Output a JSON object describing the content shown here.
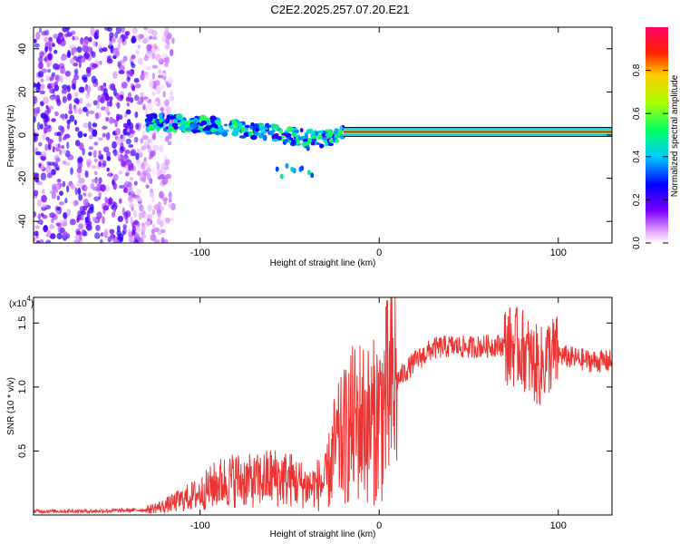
{
  "figure_title": "C2E2.2025.257.07.20.E21",
  "chart_data": [
    {
      "type": "heatmap",
      "title": "C2E2.2025.257.07.20.E21",
      "xlabel": "Height of straight line (km)",
      "ylabel": "Frequency (Hz)",
      "xlim": [
        -193,
        130
      ],
      "ylim": [
        -50,
        50
      ],
      "xticks": [
        -100,
        0,
        100
      ],
      "yticks": [
        -40,
        -20,
        0,
        20,
        40
      ],
      "grid": false,
      "colorbar": {
        "label": "Normalized spectral amplitude",
        "range": [
          0,
          1
        ],
        "ticks": [
          0.0,
          0.2,
          0.4,
          0.6,
          0.8
        ],
        "colormap": "rainbow (white-violet-blue-cyan-green-yellow-red-magenta)"
      },
      "features": [
        {
          "name": "diffuse noise",
          "x_range": [
            -193,
            -115
          ],
          "freq_range": [
            -50,
            50
          ],
          "amplitude": 0.15
        },
        {
          "name": "descending trace",
          "x": [
            -130,
            -100,
            -80,
            -60,
            -45,
            -35,
            -20
          ],
          "freq": [
            6,
            5,
            3,
            1,
            -1,
            -2,
            0
          ],
          "amplitude": 0.4
        },
        {
          "name": "carrier line",
          "x_range": [
            -20,
            130
          ],
          "freq": 1.5,
          "amplitude": 1.0
        }
      ]
    },
    {
      "type": "line",
      "xlabel": "Height of straight line (km)",
      "ylabel": "SNR (10 * v/v)",
      "y_multiplier": "(x10^4)",
      "xlim": [
        -193,
        130
      ],
      "ylim": [
        0,
        17000
      ],
      "xticks": [
        -100,
        0,
        100
      ],
      "yticks": [
        5000,
        10000,
        15000
      ],
      "ytick_labels": [
        "0.5",
        "1.0",
        "1.5"
      ],
      "grid": false,
      "series": [
        {
          "name": "SNR",
          "color": "#ee3333",
          "x": [
            -193,
            -160,
            -130,
            -120,
            -110,
            -100,
            -90,
            -80,
            -70,
            -60,
            -50,
            -40,
            -30,
            -25,
            -20,
            -15,
            -10,
            -5,
            0,
            10,
            20,
            30,
            40,
            50,
            60,
            70,
            80,
            85,
            90,
            95,
            100,
            110,
            120,
            130
          ],
          "y": [
            300,
            300,
            400,
            700,
            1200,
            1700,
            2500,
            2800,
            2600,
            3000,
            2800,
            2200,
            2500,
            5000,
            6000,
            7000,
            7500,
            7000,
            7800,
            10500,
            12000,
            13000,
            13200,
            13100,
            13200,
            13300,
            13000,
            12000,
            11500,
            12500,
            12500,
            12200,
            12000,
            12000
          ]
        }
      ]
    }
  ],
  "colors": {
    "line": "#ee3333",
    "carrier": "#ee1144"
  }
}
